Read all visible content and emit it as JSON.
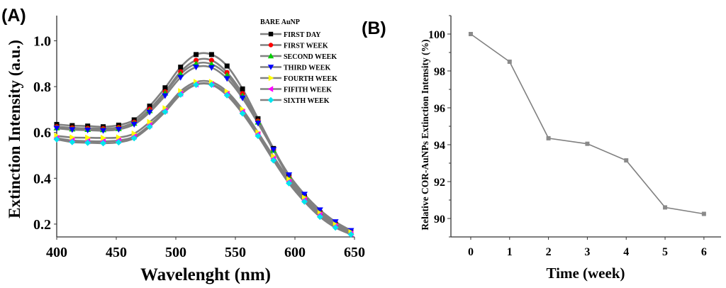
{
  "chart_data": [
    {
      "panel_label": "(A)",
      "type": "line",
      "xlabel": "Wavelenght (nm)",
      "ylabel": "Extinction Intensity (a.u.)",
      "xlim": [
        400,
        650
      ],
      "ylim": [
        0.144,
        1.11
      ],
      "xticks": [
        400,
        450,
        500,
        550,
        600,
        650
      ],
      "yticks": [
        0.2,
        0.4,
        0.6,
        0.8,
        1.0
      ],
      "ytick_labels": [
        "0.2",
        "0.4",
        "0.6",
        "0.8",
        "1.0"
      ],
      "grid": false,
      "line_color": "#808080",
      "legend": {
        "title": "BARE AuNP",
        "placement": "top-right"
      },
      "x": [
        400,
        413,
        426,
        439,
        452,
        465,
        478,
        491,
        504,
        517,
        530,
        543,
        556,
        569,
        582,
        595,
        608,
        621,
        634,
        647
      ],
      "series": [
        {
          "name": "FIRST DAY",
          "marker": "square",
          "color": "#000000",
          "values": [
            0.635,
            0.63,
            0.628,
            0.625,
            0.632,
            0.655,
            0.715,
            0.795,
            0.885,
            0.94,
            0.94,
            0.89,
            0.79,
            0.66,
            0.53,
            0.41,
            0.32,
            0.25,
            0.2,
            0.165
          ]
        },
        {
          "name": "FIRST WEEK",
          "marker": "circle",
          "color": "#ff0000",
          "values": [
            0.625,
            0.62,
            0.618,
            0.617,
            0.622,
            0.645,
            0.702,
            0.778,
            0.865,
            0.915,
            0.915,
            0.862,
            0.77,
            0.65,
            0.525,
            0.405,
            0.318,
            0.25,
            0.2,
            0.165
          ]
        },
        {
          "name": "SECOND WEEK",
          "marker": "triangle-up",
          "color": "#00cc00",
          "values": [
            0.62,
            0.615,
            0.613,
            0.612,
            0.617,
            0.64,
            0.695,
            0.772,
            0.855,
            0.9,
            0.898,
            0.85,
            0.76,
            0.645,
            0.522,
            0.405,
            0.32,
            0.252,
            0.202,
            0.166
          ]
        },
        {
          "name": "THIRD WEEK",
          "marker": "triangle-down",
          "color": "#0000ff",
          "values": [
            0.618,
            0.612,
            0.61,
            0.608,
            0.613,
            0.635,
            0.688,
            0.76,
            0.84,
            0.885,
            0.883,
            0.835,
            0.75,
            0.64,
            0.525,
            0.415,
            0.33,
            0.262,
            0.21,
            0.172
          ]
        },
        {
          "name": "FOURTH WEEK",
          "marker": "triangle-right",
          "color": "#ffff00",
          "values": [
            0.585,
            0.578,
            0.577,
            0.576,
            0.578,
            0.595,
            0.645,
            0.705,
            0.78,
            0.82,
            0.82,
            0.778,
            0.7,
            0.6,
            0.495,
            0.395,
            0.315,
            0.248,
            0.198,
            0.165
          ]
        },
        {
          "name": "FIFITH WEEK",
          "marker": "triangle-left",
          "color": "#ff00ff",
          "values": [
            0.575,
            0.565,
            0.562,
            0.561,
            0.565,
            0.582,
            0.632,
            0.695,
            0.77,
            0.81,
            0.81,
            0.768,
            0.69,
            0.592,
            0.485,
            0.385,
            0.305,
            0.24,
            0.19,
            0.158
          ]
        },
        {
          "name": "SIXTH WEEK",
          "marker": "diamond",
          "color": "#00e5ee",
          "values": [
            0.57,
            0.558,
            0.555,
            0.553,
            0.557,
            0.575,
            0.625,
            0.69,
            0.765,
            0.808,
            0.808,
            0.762,
            0.683,
            0.585,
            0.478,
            0.378,
            0.298,
            0.232,
            0.185,
            0.155
          ]
        }
      ]
    },
    {
      "panel_label": "(B)",
      "type": "line",
      "xlabel": "Time (week)",
      "ylabel": "Relative COR-AuNPs Extinction Intensity (%)",
      "xlim": [
        -0.51,
        6.44
      ],
      "ylim": [
        89,
        101
      ],
      "xticks": [
        0,
        1,
        2,
        3,
        4,
        5,
        6
      ],
      "yticks": [
        90,
        92,
        94,
        96,
        98,
        100
      ],
      "grid": false,
      "line_color": "#808080",
      "marker": "square",
      "x": [
        0,
        1,
        2,
        3,
        4,
        5,
        6
      ],
      "values": [
        100,
        98.5,
        94.35,
        94.05,
        93.15,
        90.6,
        90.25
      ]
    }
  ]
}
